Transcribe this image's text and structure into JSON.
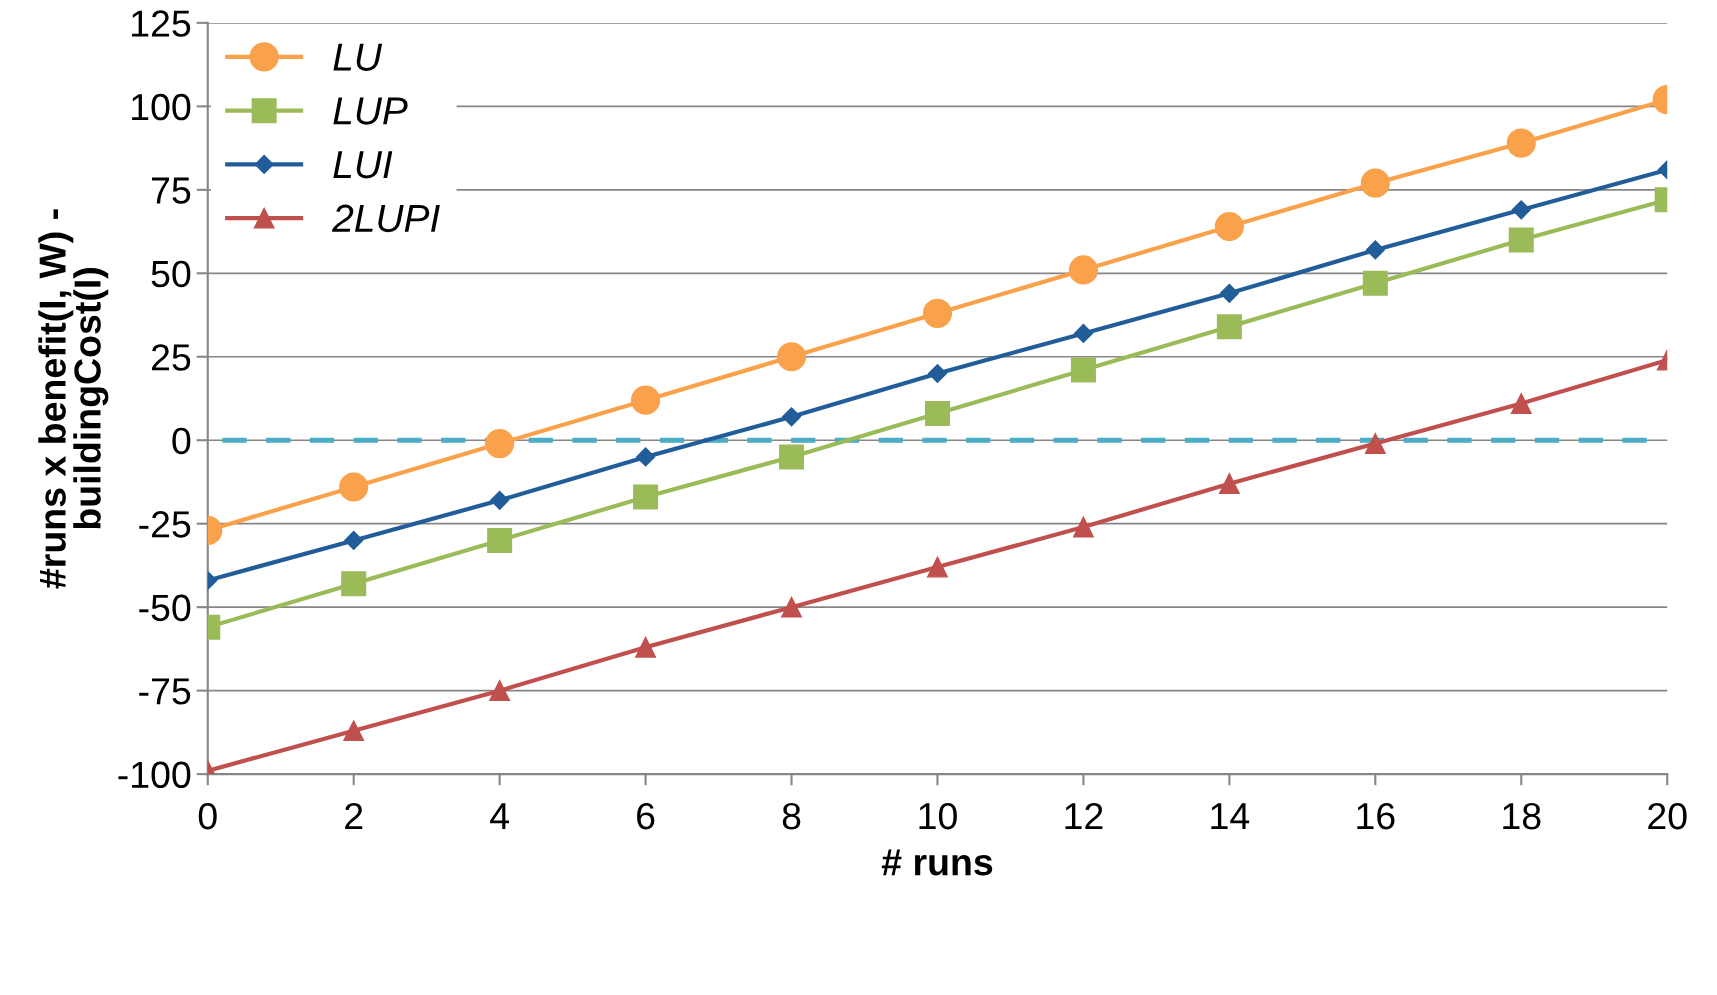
{
  "chart_data": {
    "type": "line",
    "xlabel": "# runs",
    "ylabel": "#runs x benefit(I, W) -\nbuildingCost(I)",
    "x": [
      0,
      2,
      4,
      6,
      8,
      10,
      12,
      14,
      16,
      18,
      20
    ],
    "series": [
      {
        "name": "LU",
        "color": "#f9a24b",
        "marker": "circle",
        "values": [
          -27,
          -14,
          -1,
          12,
          25,
          38,
          51,
          64,
          77,
          89,
          102
        ]
      },
      {
        "name": "LUP",
        "color": "#9bbb59",
        "marker": "square",
        "values": [
          -56,
          -43,
          -30,
          -17,
          -5,
          8,
          21,
          34,
          47,
          60,
          72
        ]
      },
      {
        "name": "LUI",
        "color": "#215d99",
        "marker": "diamond",
        "values": [
          -42,
          -30,
          -18,
          -5,
          7,
          20,
          32,
          44,
          57,
          69,
          81
        ]
      },
      {
        "name": "2LUPI",
        "color": "#c0504d",
        "marker": "triangle",
        "values": [
          -99,
          -87,
          -75,
          -62,
          -50,
          -38,
          -26,
          -13,
          -1,
          11,
          24
        ]
      }
    ],
    "xlim": [
      0,
      20
    ],
    "xticks": [
      0,
      2,
      4,
      6,
      8,
      10,
      12,
      14,
      16,
      18,
      20
    ],
    "ylim": [
      -100,
      125
    ],
    "yticks": [
      -100,
      -75,
      -50,
      -25,
      0,
      25,
      50,
      75,
      100,
      125
    ],
    "ref_lines": [
      {
        "axis": "y",
        "value": 0,
        "color": "#4bacc6",
        "line_style": "dashed"
      }
    ],
    "grid": "y",
    "legend": "top left"
  }
}
